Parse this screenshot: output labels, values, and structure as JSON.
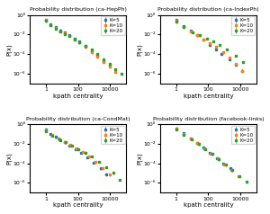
{
  "chart_data": [
    {
      "type": "scatter",
      "title": "Probability distribution (ca-HepPh)",
      "x_label": "kpath centrality",
      "y_label": "P(x)",
      "log": true,
      "grid": false,
      "legend": "upper right",
      "marker": "square",
      "xlim": [
        0.1,
        100000
      ],
      "xticks": [
        1,
        100,
        10000
      ],
      "ylim": [
        1e-07,
        1
      ],
      "yticks": [
        {
          "value": 1e-06,
          "label": "10⁻⁶"
        },
        {
          "value": 0.0001,
          "label": "10⁻⁴"
        },
        {
          "value": 0.01,
          "label": "10⁻²"
        },
        {
          "value": 1,
          "label": "10⁰"
        }
      ],
      "series": [
        {
          "name": "K=5",
          "x": [
            1.0,
            2.0,
            4.0,
            8.0,
            15.0,
            30.0,
            60.0,
            120.0,
            300.0,
            700.0,
            1500.0,
            4000.0,
            9000.0
          ],
          "values": [
            0.35,
            0.12,
            0.055,
            0.028,
            0.016,
            0.009,
            0.004,
            0.002,
            0.0007,
            0.0002,
            7e-05,
            2e-05,
            7e-06
          ],
          "errors": [
            0.0875,
            0.03,
            0.01375,
            0.007,
            0.004,
            0.00225,
            0.001,
            0.0005,
            0.000175,
            5e-05,
            1.75e-05,
            5e-06,
            1.75e-06
          ]
        },
        {
          "name": "K=10",
          "x": [
            1.0,
            2.0,
            4.0,
            8.0,
            15.0,
            30.0,
            60.0,
            120.0,
            300.0,
            700.0,
            1500.0,
            4000.0,
            9000.0,
            20000.0
          ],
          "values": [
            0.3,
            0.1,
            0.045,
            0.022,
            0.013,
            0.007,
            0.003,
            0.0015,
            0.0005,
            0.00015,
            5e-05,
            1.5e-05,
            5e-06,
            1.5e-06
          ],
          "errors": [
            0.075,
            0.025,
            0.01125,
            0.0055,
            0.00325,
            0.00175,
            0.00075,
            0.000375,
            0.000125,
            3.75e-05,
            1.25e-05,
            3.75e-06,
            1.25e-06,
            3.75e-07
          ]
        },
        {
          "name": "K=20",
          "x": [
            1.0,
            2.0,
            4.0,
            8.0,
            15.0,
            30.0,
            60.0,
            120.0,
            300.0,
            700.0,
            1500.0,
            4000.0,
            9000.0,
            20000.0,
            50000.0
          ],
          "values": [
            0.25,
            0.09,
            0.04,
            0.02,
            0.012,
            0.007,
            0.003,
            0.0016,
            0.0007,
            0.0003,
            0.0001,
            3e-05,
            1e-05,
            3e-06,
            1e-06
          ],
          "errors": [
            0.0625,
            0.0225,
            0.01,
            0.005,
            0.003,
            0.00175,
            0.00075,
            0.0004,
            0.000175,
            7.5e-05,
            2.5e-05,
            7.5e-06,
            2.5e-06,
            7.5e-07,
            2.5e-07
          ]
        }
      ]
    },
    {
      "type": "scatter",
      "title": "Probability distribution (ca-IndexPh)",
      "x_label": "kpath centrality",
      "y_label": "P(x)",
      "log": true,
      "grid": false,
      "legend": "upper right",
      "marker": "square",
      "xlim": [
        0.1,
        100000
      ],
      "xticks": [
        1,
        100,
        10000
      ],
      "ylim": [
        1e-07,
        1
      ],
      "yticks": [
        {
          "value": 1e-06,
          "label": "10⁻⁶"
        },
        {
          "value": 0.0001,
          "label": "10⁻⁴"
        },
        {
          "value": 0.01,
          "label": "10⁻²"
        },
        {
          "value": 1,
          "label": "10⁰"
        }
      ],
      "series": [
        {
          "name": "K=5",
          "x": [
            1.0,
            3.0,
            8.0,
            20.0,
            50.0,
            130.0,
            300.0,
            700.0,
            2000.0,
            5000.0,
            12000.0
          ],
          "values": [
            0.3,
            0.08,
            0.025,
            0.009,
            0.003,
            0.0009,
            0.0003,
            0.0001,
            3e-05,
            8e-06,
            2e-06
          ],
          "errors": [
            0.075,
            0.02,
            0.00625,
            0.00225,
            0.00075,
            0.000225,
            7.5e-05,
            2.5e-05,
            7.5e-06,
            2e-06,
            5e-07
          ]
        },
        {
          "name": "K=10",
          "x": [
            1.0,
            3.0,
            8.0,
            20.0,
            50.0,
            130.0,
            300.0,
            800.0,
            2000.0,
            5000.0,
            12000.0
          ],
          "values": [
            0.25,
            0.065,
            0.02,
            0.008,
            0.003,
            0.0012,
            0.0005,
            0.00015,
            4e-05,
            1e-05,
            2e-06
          ],
          "errors": [
            0.0625,
            0.01625,
            0.005,
            0.002,
            0.00075,
            0.0003,
            0.000125,
            3.75e-05,
            1e-05,
            2.5e-06,
            5e-07
          ]
        },
        {
          "name": "K=20",
          "x": [
            1.0,
            3.0,
            10.0,
            30.0,
            80.0,
            200.0,
            500.0,
            1500.0,
            5000.0,
            15000.0
          ],
          "values": [
            0.2,
            0.06,
            0.018,
            0.008,
            0.004,
            0.002,
            0.0009,
            0.0003,
            7e-05,
            1.5e-05
          ],
          "errors": [
            0.05,
            0.015,
            0.0045,
            0.002,
            0.001,
            0.0005,
            0.000225,
            7.5e-05,
            1.75e-05,
            3.75e-06
          ]
        }
      ]
    },
    {
      "type": "scatter",
      "title": "Probability distribution (ca-CondMat)",
      "x_label": "kpath centrality",
      "y_label": "P(x)",
      "log": true,
      "grid": false,
      "legend": "upper right",
      "marker": "square",
      "xlim": [
        0.1,
        100000
      ],
      "xticks": [
        1,
        100,
        10000
      ],
      "ylim": [
        1e-07,
        1
      ],
      "yticks": [
        {
          "value": 1e-06,
          "label": "10⁻⁶"
        },
        {
          "value": 0.0001,
          "label": "10⁻⁴"
        },
        {
          "value": 0.01,
          "label": "10⁻²"
        },
        {
          "value": 1,
          "label": "10⁰"
        }
      ],
      "series": [
        {
          "name": "K=5",
          "x": [
            1.0,
            2.0,
            4.0,
            8.0,
            15.0,
            30.0,
            70.0,
            150.0,
            400.0,
            900.0,
            2500.0,
            6000.0
          ],
          "values": [
            0.28,
            0.1,
            0.05,
            0.025,
            0.014,
            0.007,
            0.003,
            0.0012,
            0.0004,
            0.00012,
            3e-05,
            8e-06
          ],
          "errors": [
            0.07,
            0.025,
            0.0125,
            0.00625,
            0.0035,
            0.00175,
            0.00075,
            0.0003,
            0.0001,
            3e-05,
            7.5e-06,
            2e-06
          ]
        },
        {
          "name": "K=10",
          "x": [
            1.0,
            2.5,
            6.0,
            15.0,
            35.0,
            80.0,
            200.0,
            500.0,
            1200.0,
            3500.0,
            9000.0
          ],
          "values": [
            0.24,
            0.085,
            0.035,
            0.016,
            0.008,
            0.0035,
            0.0014,
            0.0005,
            0.00015,
            3e-05,
            7e-06
          ],
          "errors": [
            0.06,
            0.02125,
            0.00875,
            0.004,
            0.002,
            0.000875,
            0.00035,
            0.000125,
            3.75e-05,
            7.5e-06,
            1.75e-06
          ]
        },
        {
          "name": "K=20",
          "x": [
            1.0,
            2.5,
            7.0,
            18.0,
            45.0,
            110.0,
            280.0,
            700.0,
            2000.0,
            5500.0,
            15000.0,
            40000.0
          ],
          "values": [
            0.2,
            0.07,
            0.03,
            0.014,
            0.007,
            0.003,
            0.0013,
            0.0005,
            0.00015,
            4e-05,
            1e-05,
            2e-06
          ],
          "errors": [
            0.05,
            0.0175,
            0.0075,
            0.0035,
            0.00175,
            0.00075,
            0.000325,
            0.000125,
            3.75e-05,
            1e-05,
            2.5e-06,
            5e-07
          ]
        }
      ]
    },
    {
      "type": "scatter",
      "title": "Probability distribution (facebook-links)",
      "x_label": "kpath centrality",
      "y_label": "P(x)",
      "log": true,
      "grid": false,
      "legend": "upper right",
      "marker": "square",
      "xlim": [
        0.1,
        100000
      ],
      "xticks": [
        1,
        100,
        10000
      ],
      "ylim": [
        1e-07,
        1
      ],
      "yticks": [
        {
          "value": 1e-06,
          "label": "10⁻⁶"
        },
        {
          "value": 0.0001,
          "label": "10⁻⁴"
        },
        {
          "value": 0.01,
          "label": "10⁻²"
        },
        {
          "value": 1,
          "label": "10⁰"
        }
      ],
      "series": [
        {
          "name": "K=5",
          "x": [
            1.0,
            3.0,
            8.0,
            20.0,
            50.0,
            130.0,
            350.0,
            900.0,
            2500.0
          ],
          "values": [
            0.4,
            0.12,
            0.038,
            0.013,
            0.004,
            0.0012,
            0.00035,
            0.0001,
            3e-05
          ],
          "errors": [
            0.1,
            0.03,
            0.0095,
            0.00325,
            0.001,
            0.0003,
            8.75e-05,
            2.5e-05,
            7.5e-06
          ]
        },
        {
          "name": "K=10",
          "x": [
            1.0,
            3.0,
            8.0,
            20.0,
            55.0,
            140.0,
            380.0,
            1000.0,
            2800.0,
            7500.0
          ],
          "values": [
            0.35,
            0.1,
            0.032,
            0.011,
            0.0035,
            0.001,
            0.0003,
            8e-05,
            2e-05,
            5e-06
          ],
          "errors": [
            0.0875,
            0.025,
            0.008,
            0.00275,
            0.000875,
            0.00025,
            7.5e-05,
            2e-05,
            5e-06,
            1.25e-06
          ]
        },
        {
          "name": "K=20",
          "x": [
            1.0,
            3.0,
            9.0,
            25.0,
            65.0,
            170.0,
            450.0,
            1200.0,
            3200.0,
            8500.0,
            23000.0
          ],
          "values": [
            0.3,
            0.09,
            0.028,
            0.009,
            0.003,
            0.0009,
            0.00025,
            7e-05,
            2e-05,
            5e-06,
            1.2e-06
          ],
          "errors": [
            0.075,
            0.0225,
            0.007,
            0.00225,
            0.00075,
            0.000225,
            6.25e-05,
            1.75e-05,
            5e-06,
            1.25e-06,
            3e-07
          ]
        }
      ]
    }
  ]
}
